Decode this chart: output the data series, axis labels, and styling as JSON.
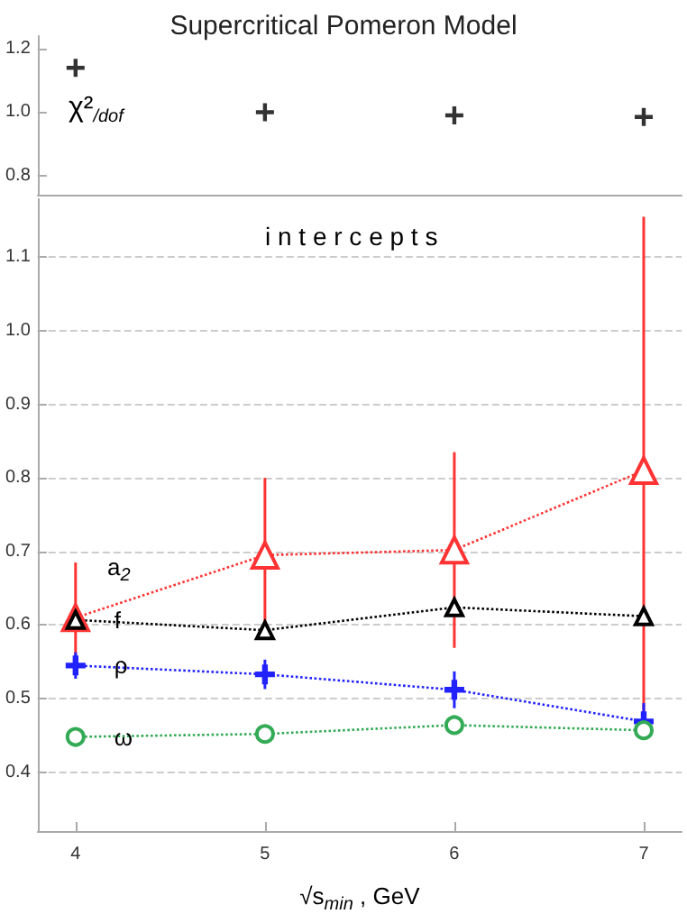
{
  "chart_data": [
    {
      "type": "scatter",
      "title": "Supercritical Pomeron Model",
      "annotations": [
        "χ²$_{/dof}$"
      ],
      "x": [
        4,
        5,
        6,
        7
      ],
      "values": [
        1.14,
        1.0,
        0.99,
        0.985
      ],
      "color": "#000000",
      "marker": "cross",
      "xlim": [
        3.8,
        7.2
      ],
      "ylim": [
        0.74,
        1.24
      ],
      "yticks": [
        0.8,
        {
          "value": 1.0,
          "label": "1.0"
        },
        1.2
      ],
      "tick_labels": "y",
      "grid": false
    },
    {
      "type": "line",
      "annotations": [
        "i n t e r c e p t s"
      ],
      "xlabel": "√s$_{min}$ , GeV",
      "x": [
        4,
        5,
        6,
        7
      ],
      "xlim": [
        3.8,
        7.2
      ],
      "ylim": [
        0.32,
        1.18
      ],
      "xticks": [
        4,
        5,
        6,
        7
      ],
      "yticks": [
        0.4,
        0.5,
        0.6,
        0.7,
        0.8,
        0.9,
        {
          "value": 1.0,
          "label": "1.0"
        },
        1.1
      ],
      "grid": "y",
      "line_style": "dotted",
      "series": [
        {
          "name": "a$_{2}$",
          "color": "#ff3333",
          "marker": "triangle",
          "values": [
            0.61,
            0.695,
            0.702,
            0.81
          ],
          "errors": [
            0.075,
            0.105,
            0.133,
            0.345
          ]
        },
        {
          "name": "f",
          "color": "#000000",
          "marker": "triangle",
          "values": [
            0.607,
            0.593,
            0.624,
            0.612
          ]
        },
        {
          "name": "ρ",
          "color": "#2222ff",
          "marker": "cross",
          "values": [
            0.545,
            0.533,
            0.512,
            0.469
          ],
          "errors": [
            0.018,
            0.02,
            0.025,
            0.025
          ]
        },
        {
          "name": "ω",
          "color": "#33aa55",
          "marker": "circle",
          "values": [
            0.448,
            0.452,
            0.464,
            0.457
          ]
        }
      ]
    }
  ]
}
